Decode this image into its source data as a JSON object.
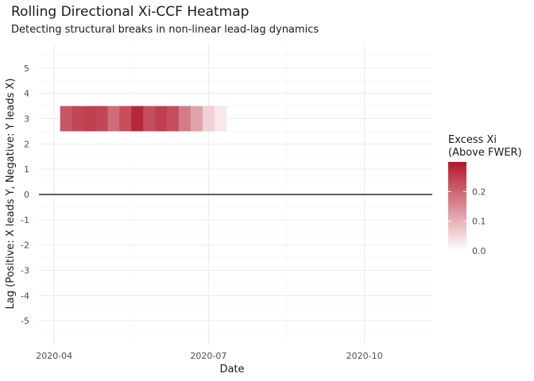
{
  "chart_data": {
    "type": "heatmap",
    "title": "Rolling Directional Xi-CCF Heatmap",
    "subtitle": "Detecting structural breaks in non-linear lead-lag dynamics",
    "xlabel": "Date",
    "ylabel": "Lag (Positive: X leads Y, Negative: Y leads X)",
    "x_ticks": [
      "2020-04",
      "2020-07",
      "2020-10"
    ],
    "x_tick_dates": [
      "2020-04-01",
      "2020-07-01",
      "2020-10-01"
    ],
    "xlim": [
      "2020-03-23",
      "2020-11-10"
    ],
    "y_ticks": [
      5,
      4,
      3,
      2,
      1,
      0,
      -1,
      -2,
      -3,
      -4,
      -5
    ],
    "ylim": [
      -6,
      6
    ],
    "reference_line_y": 0,
    "legend": {
      "title_lines": [
        "Excess Xi",
        "(Above FWER)"
      ],
      "ticks": [
        "0.0",
        "0.1",
        "0.2"
      ],
      "tick_values": [
        0,
        0.1,
        0.2
      ],
      "range": [
        0,
        0.3
      ],
      "color_low": "#ffffff",
      "color_high": "#b2182b",
      "placement": "right"
    },
    "tiles": [
      {
        "date": "2020-04-08",
        "lag": 3,
        "value": 0.22
      },
      {
        "date": "2020-04-15",
        "lag": 3,
        "value": 0.24
      },
      {
        "date": "2020-04-22",
        "lag": 3,
        "value": 0.25
      },
      {
        "date": "2020-04-29",
        "lag": 3,
        "value": 0.24
      },
      {
        "date": "2020-05-06",
        "lag": 3,
        "value": 0.19
      },
      {
        "date": "2020-05-13",
        "lag": 3,
        "value": 0.23
      },
      {
        "date": "2020-05-20",
        "lag": 3,
        "value": 0.28
      },
      {
        "date": "2020-05-27",
        "lag": 3,
        "value": 0.23
      },
      {
        "date": "2020-06-03",
        "lag": 3,
        "value": 0.25
      },
      {
        "date": "2020-06-10",
        "lag": 3,
        "value": 0.23
      },
      {
        "date": "2020-06-17",
        "lag": 3,
        "value": 0.17
      },
      {
        "date": "2020-06-24",
        "lag": 3,
        "value": 0.12
      },
      {
        "date": "2020-07-01",
        "lag": 3,
        "value": 0.06
      },
      {
        "date": "2020-07-08",
        "lag": 3,
        "value": 0.03
      }
    ],
    "grid": true
  }
}
